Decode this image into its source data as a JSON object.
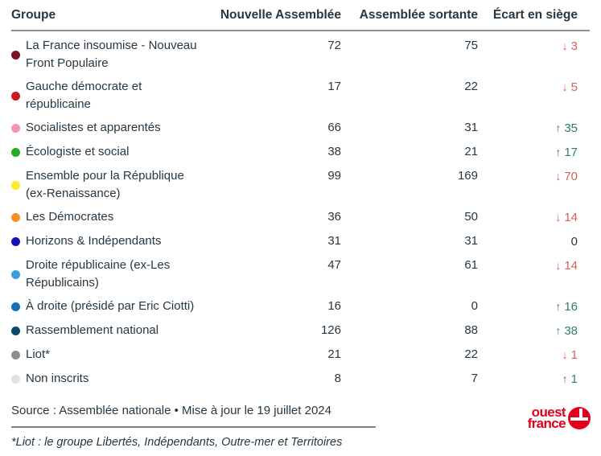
{
  "table": {
    "columns": [
      "Groupe",
      "Nouvelle Assemblée",
      "Assemblée sortante",
      "Écart en siège"
    ],
    "rows": [
      {
        "group": "La France insoumise - Nouveau Front Populaire",
        "dot_color": "#7d1128",
        "nouvelle": 72,
        "sortante": 75,
        "ecart": -3
      },
      {
        "group": "Gauche démocrate et républicaine",
        "dot_color": "#ce171f",
        "nouvelle": 17,
        "sortante": 22,
        "ecart": -5
      },
      {
        "group": "Socialistes et apparentés",
        "dot_color": "#f492b9",
        "nouvelle": 66,
        "sortante": 31,
        "ecart": 35
      },
      {
        "group": "Écologiste et social",
        "dot_color": "#23ae23",
        "nouvelle": 38,
        "sortante": 21,
        "ecart": 17
      },
      {
        "group": "Ensemble pour la République (ex-Renaissance)",
        "dot_color": "#ffe933",
        "nouvelle": 99,
        "sortante": 169,
        "ecart": -70
      },
      {
        "group": "Les Démocrates",
        "dot_color": "#f79221",
        "nouvelle": 36,
        "sortante": 50,
        "ecart": -14
      },
      {
        "group": "Horizons & Indépendants",
        "dot_color": "#1414b4",
        "nouvelle": 31,
        "sortante": 31,
        "ecart": 0
      },
      {
        "group": "Droite républicaine (ex-Les Républicains)",
        "dot_color": "#3d9dd8",
        "nouvelle": 47,
        "sortante": 61,
        "ecart": -14
      },
      {
        "group": "À droite (présidé par Eric Ciotti)",
        "dot_color": "#1273ba",
        "nouvelle": 16,
        "sortante": 0,
        "ecart": 16
      },
      {
        "group": "Rassemblement national",
        "dot_color": "#0d4769",
        "nouvelle": 126,
        "sortante": 88,
        "ecart": 38
      },
      {
        "group": "Liot*",
        "dot_color": "#8d8d8d",
        "nouvelle": 21,
        "sortante": 22,
        "ecart": -1
      },
      {
        "group": "Non inscrits",
        "dot_color": "#e2e2e2",
        "nouvelle": 8,
        "sortante": 7,
        "ecart": 1
      }
    ]
  },
  "footer": {
    "source": "Source : Assemblée nationale • Mise à jour le 19 juillet 2024",
    "footnote": "*Liot : le groupe Libertés, Indépendants, Outre-mer et Territoires"
  },
  "logo": {
    "line1": "ouest",
    "line2": "france"
  },
  "icons": {
    "up": "↑",
    "down": "↓"
  },
  "colors": {
    "positive": "#2e7d64",
    "negative": "#d5605a",
    "text": "#263744",
    "logo_red": "#e2001a"
  }
}
